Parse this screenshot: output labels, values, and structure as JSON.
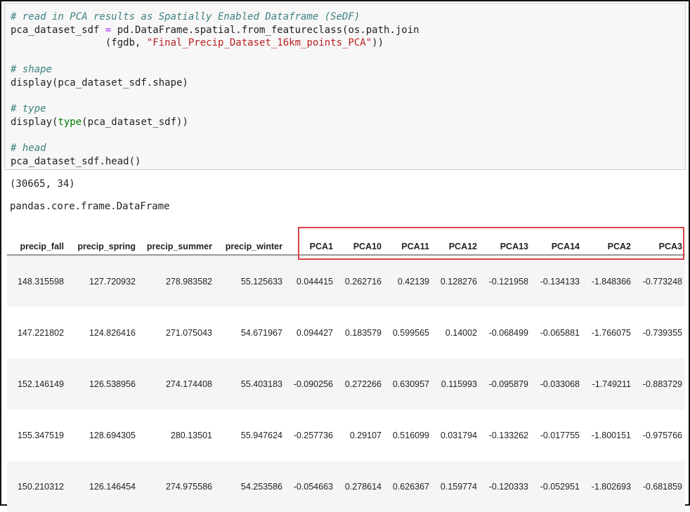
{
  "code_cell": {
    "lines": [
      {
        "type": "comment",
        "text": "# read in PCA results as Spatially Enabled Dataframe (SeDF)"
      },
      {
        "type": "code",
        "parts": [
          "pca_dataset_sdf ",
          "=",
          " pd.DataFrame.spatial.from_featureclass(os.path.join"
        ]
      },
      {
        "type": "code2",
        "parts": [
          "                (fgdb, ",
          "\"Final_Precip_Dataset_16km_points_PCA\"",
          "))"
        ]
      },
      {
        "type": "blank"
      },
      {
        "type": "comment",
        "text": "# shape"
      },
      {
        "type": "plain",
        "text": "display(pca_dataset_sdf.shape)"
      },
      {
        "type": "blank"
      },
      {
        "type": "comment",
        "text": "# type"
      },
      {
        "type": "builtin",
        "parts": [
          "display(",
          "type",
          "(pca_dataset_sdf))"
        ]
      },
      {
        "type": "blank"
      },
      {
        "type": "comment",
        "text": "# head"
      },
      {
        "type": "plain",
        "text": "pca_dataset_sdf.head()"
      }
    ]
  },
  "outputs": {
    "shape": "(30665, 34)",
    "type": "pandas.core.frame.DataFrame"
  },
  "table": {
    "columns": [
      "precip_fall",
      "precip_spring",
      "precip_summer",
      "precip_winter",
      "PCA1",
      "PCA10",
      "PCA11",
      "PCA12",
      "PCA13",
      "PCA14",
      "PCA2",
      "PCA3"
    ],
    "highlighted_columns": [
      "PCA1",
      "PCA10",
      "PCA11",
      "PCA12",
      "PCA13",
      "PCA14",
      "PCA2",
      "PCA3"
    ],
    "highlight_color": "#d9434b",
    "rows": [
      [
        "148.315598",
        "127.720932",
        "278.983582",
        "55.125633",
        "0.044415",
        "0.262716",
        "0.42139",
        "0.128276",
        "-0.121958",
        "-0.134133",
        "-1.848366",
        "-0.773248"
      ],
      [
        "147.221802",
        "124.826416",
        "271.075043",
        "54.671967",
        "0.094427",
        "0.183579",
        "0.599565",
        "0.14002",
        "-0.068499",
        "-0.065881",
        "-1.766075",
        "-0.739355"
      ],
      [
        "152.146149",
        "126.538956",
        "274.174408",
        "55.403183",
        "-0.090256",
        "0.272266",
        "0.630957",
        "0.115993",
        "-0.095879",
        "-0.033068",
        "-1.749211",
        "-0.883729"
      ],
      [
        "155.347519",
        "128.694305",
        "280.13501",
        "55.947624",
        "-0.257736",
        "0.29107",
        "0.516099",
        "0.031794",
        "-0.133262",
        "-0.017755",
        "-1.800151",
        "-0.975766"
      ],
      [
        "150.210312",
        "126.146454",
        "274.975586",
        "54.253586",
        "-0.054663",
        "0.278614",
        "0.626367",
        "0.159774",
        "-0.120333",
        "-0.052951",
        "-1.802693",
        "-0.681859"
      ]
    ]
  }
}
